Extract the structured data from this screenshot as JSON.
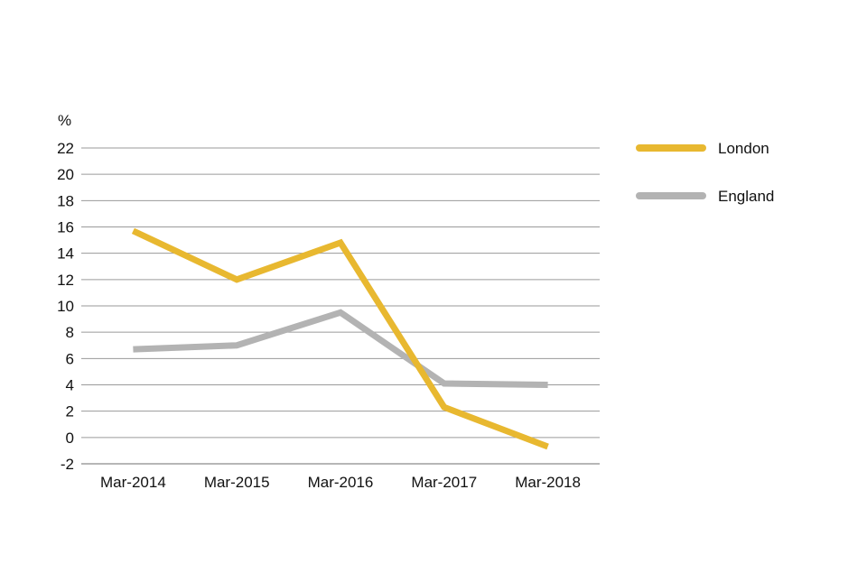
{
  "chart_data": {
    "type": "line",
    "title": "",
    "xlabel": "",
    "ylabel": "%",
    "ylim": [
      -2,
      22
    ],
    "yticks": [
      -2,
      0,
      2,
      4,
      6,
      8,
      10,
      12,
      14,
      16,
      18,
      20,
      22
    ],
    "categories": [
      "Mar-2014",
      "Mar-2015",
      "Mar-2016",
      "Mar-2017",
      "Mar-2018"
    ],
    "series": [
      {
        "name": "London",
        "color": "#E8B830",
        "values": [
          15.7,
          12.0,
          14.8,
          2.3,
          -0.7
        ]
      },
      {
        "name": "England",
        "color": "#B3B3B3",
        "values": [
          6.7,
          7.0,
          9.5,
          4.1,
          4.0
        ]
      }
    ],
    "grid": true,
    "legend_position": "right"
  }
}
